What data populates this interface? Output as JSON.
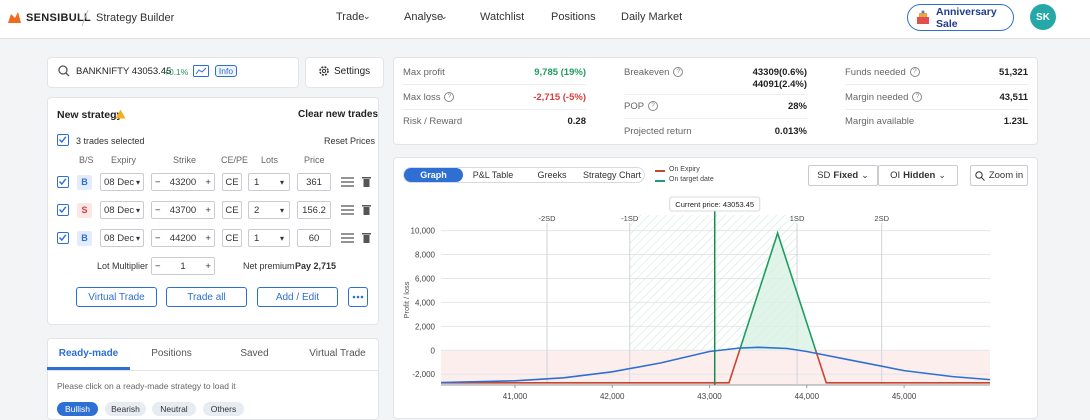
{
  "header": {
    "brand": "SENSIBULL",
    "page": "Strategy Builder",
    "nav": [
      "Trade",
      "Analyse",
      "Watchlist",
      "Positions",
      "Daily Market"
    ],
    "promo": "Anniversary Sale",
    "avatar": "SK"
  },
  "search": {
    "symbol": "BANKNIFTY 43053.45",
    "change": "+0.1%",
    "info": "Info"
  },
  "settings": "Settings",
  "strategy": {
    "title": "New strategy",
    "clear": "Clear new trades",
    "selected": "3 trades selected",
    "reset": "Reset Prices",
    "columns": [
      "B/S",
      "Expiry",
      "Strike",
      "CE/PE",
      "Lots",
      "Price"
    ],
    "trades": [
      {
        "side": "B",
        "expiry": "08 Dec",
        "strike": 43200,
        "type": "CE",
        "lots": 1,
        "price": 361
      },
      {
        "side": "S",
        "expiry": "08 Dec",
        "strike": 43700,
        "type": "CE",
        "lots": 2,
        "price": 156.2
      },
      {
        "side": "B",
        "expiry": "08 Dec",
        "strike": 44200,
        "type": "CE",
        "lots": 1,
        "price": 60
      }
    ],
    "lot_multiplier_label": "Lot Multiplier",
    "lot_multiplier": 1,
    "net_premium_label": "Net premium",
    "net_premium": "Pay 2,715",
    "buttons": [
      "Virtual Trade",
      "Trade all",
      "Add / Edit"
    ]
  },
  "library": {
    "tabs": [
      "Ready-made",
      "Positions",
      "Saved",
      "Virtual Trade"
    ],
    "hint": "Please click on a ready-made strategy to load it",
    "filters": [
      "Bullish",
      "Bearish",
      "Neutral",
      "Others"
    ]
  },
  "stats": [
    [
      {
        "label": "Max profit",
        "values": [
          "9,785 (19%)"
        ]
      },
      {
        "label": "Max loss",
        "values": [
          "-2,715 (-5%)"
        ]
      },
      {
        "label": "Risk / Reward",
        "values": [
          "0.28"
        ]
      }
    ],
    [
      {
        "label": "Breakeven",
        "values": [
          "43309(0.6%)",
          "44091(2.4%)"
        ]
      },
      {
        "label": "POP",
        "values": [
          "28%"
        ]
      },
      {
        "label": "Projected return",
        "values": [
          "0.013%"
        ]
      }
    ],
    [
      {
        "label": "Funds needed",
        "values": [
          "51,321"
        ]
      },
      {
        "label": "Margin needed",
        "values": [
          "43,511"
        ]
      },
      {
        "label": "Margin available",
        "values": [
          "1.23L"
        ]
      }
    ]
  ],
  "chart_tabs": [
    "Graph",
    "P&L Table",
    "Greeks",
    "Strategy Chart"
  ],
  "chart_controls": {
    "sd": "SD",
    "sd_value": "Fixed",
    "oi": "OI",
    "oi_value": "Hidden",
    "zoom": "Zoom in"
  },
  "chart_data": {
    "type": "line",
    "y_label": "Profit / loss",
    "xlim": [
      40240,
      45883
    ],
    "ylim": [
      -2900,
      11300
    ],
    "xticks": [
      {
        "value": 41000,
        "label": "41,000"
      },
      {
        "value": 42000,
        "label": "42,000"
      },
      {
        "value": 43000,
        "label": "43,000"
      },
      {
        "value": 44000,
        "label": "44,000"
      },
      {
        "value": 45000,
        "label": "45,000"
      }
    ],
    "yticks": [
      {
        "value": -2000,
        "label": "-2,000"
      },
      0,
      {
        "value": 2000,
        "label": "2,000"
      },
      {
        "value": 4000,
        "label": "4,000"
      },
      {
        "value": 6000,
        "label": "6,000"
      },
      {
        "value": 8000,
        "label": "8,000"
      },
      {
        "value": 10000,
        "label": "10,000"
      }
    ],
    "current_price": {
      "value": 43053.45,
      "label": "Current price: 43053.45"
    },
    "sd_lines": [
      {
        "value": 41330,
        "label": "-2SD"
      },
      {
        "value": 42180,
        "label": "-1SD"
      },
      {
        "value": 43900,
        "label": "1SD"
      },
      {
        "value": 44770,
        "label": "2SD"
      }
    ],
    "series": [
      {
        "name": "On Expiry",
        "color": "#c8452f",
        "profit_color": "#1f9d61",
        "x": [
          40240,
          43200,
          43309,
          43700,
          44091,
          44200,
          45883
        ],
        "values": [
          -2715,
          -2715,
          0,
          9785,
          0,
          -2715,
          -2715
        ]
      },
      {
        "name": "On target date",
        "color": "#2f6fd1",
        "x": [
          40240,
          41000,
          41500,
          42000,
          42500,
          43000,
          43300,
          43500,
          43800,
          44000,
          44500,
          45000,
          45500,
          45883
        ],
        "values": [
          -2700,
          -2550,
          -2300,
          -1800,
          -1050,
          -100,
          180,
          250,
          150,
          -100,
          -900,
          -1700,
          -2200,
          -2450
        ]
      }
    ]
  }
}
